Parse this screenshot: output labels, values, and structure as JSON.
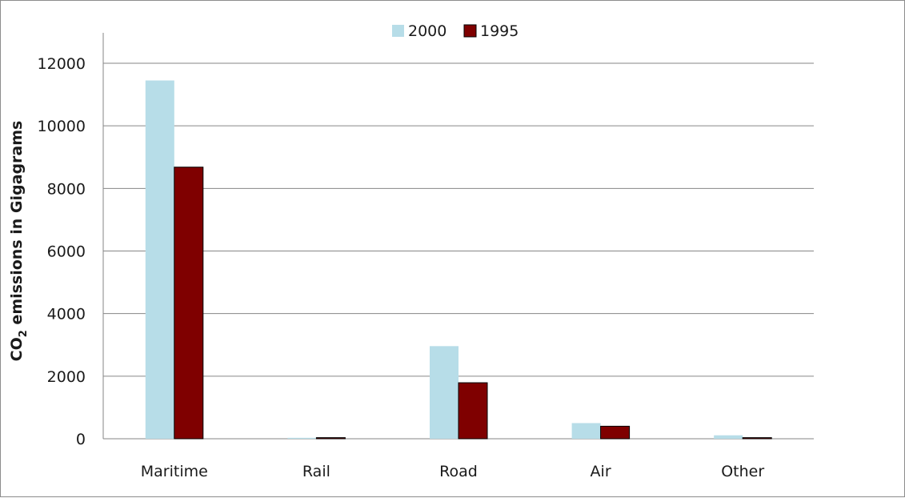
{
  "chart_data": {
    "type": "bar",
    "categories": [
      "Maritime",
      "Rail",
      "Road",
      "Air",
      "Other"
    ],
    "series": [
      {
        "name": "2000",
        "color": "#b7dde8",
        "values": [
          11450,
          30,
          2960,
          500,
          110
        ]
      },
      {
        "name": "1995",
        "color": "#7f0000",
        "values": [
          8680,
          35,
          1790,
          400,
          35
        ]
      }
    ],
    "ylabel": {
      "prefix": "CO",
      "subscript": "2",
      "suffix": " emissions in Gigagrams"
    },
    "ylim": [
      0,
      12000
    ],
    "yticks": [
      "0",
      "2000",
      "4000",
      "6000",
      "8000",
      "10000",
      "12000"
    ],
    "grid": true,
    "legend_position": "top"
  }
}
